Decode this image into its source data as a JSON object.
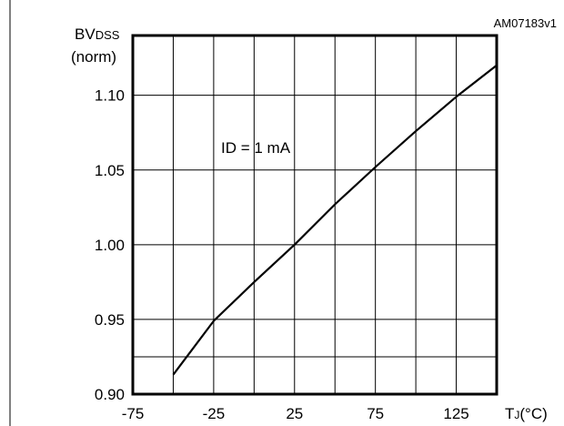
{
  "chart_data": {
    "type": "line",
    "figure_id": "AM07183v1",
    "title": "",
    "ylabel_line1": "BV",
    "ylabel_sub": "DSS",
    "ylabel_line2": "(norm)",
    "xlabel_main": "T",
    "xlabel_sub": "J",
    "xlabel_unit": "(°C)",
    "annotation": "ID = 1 mA",
    "xlim": [
      -75,
      150
    ],
    "ylim": [
      0.9,
      1.14
    ],
    "grid": true,
    "x_ticks": [
      -75,
      -25,
      25,
      75,
      125
    ],
    "x_tick_labels": [
      "-75",
      "-25",
      "25",
      "75",
      "125"
    ],
    "y_ticks": [
      0.9,
      0.95,
      1.0,
      1.05,
      1.1
    ],
    "y_tick_labels": [
      "0.90",
      "0.95",
      "1.00",
      "1.05",
      "1.10"
    ],
    "series": [
      {
        "x": [
          -50,
          -25,
          0,
          25,
          50,
          75,
          100,
          125,
          150
        ],
        "y": [
          0.913,
          0.949,
          0.975,
          1.0,
          1.027,
          1.052,
          1.076,
          1.099,
          1.12
        ]
      }
    ]
  }
}
